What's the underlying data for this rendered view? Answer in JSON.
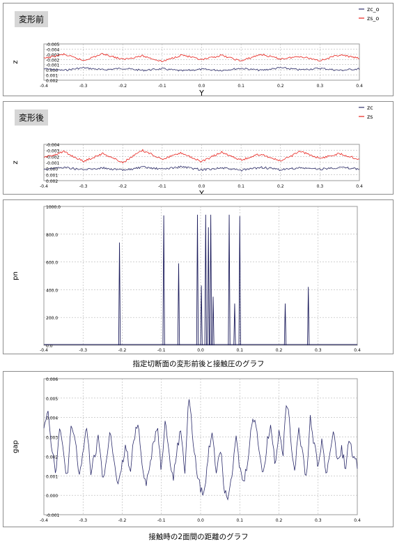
{
  "panels": {
    "before": {
      "label": "変形前"
    },
    "after": {
      "label": "変形後"
    }
  },
  "captions": {
    "contact": "指定切断面の変形前後と接触圧のグラフ",
    "gap": "接触時の2面間の距離のグラフ"
  },
  "colors": {
    "zc": "#2f2f6a",
    "zs": "#e8201a",
    "pn": "#1c1c5c",
    "gap": "#2a2a6a",
    "grid": "#b4b4b4"
  },
  "chart_data": [
    {
      "type": "line",
      "title": "",
      "xlabel": "Y",
      "ylabel": "z",
      "xlim": [
        -0.4,
        0.4
      ],
      "x_ticks": [
        "-0.4",
        "-0.3",
        "-0.2",
        "-0.1",
        "0.0",
        "0.1",
        "0.2",
        "0.3",
        "0.4"
      ],
      "y_ticks": [
        "-0.005",
        "-0.004",
        "-0.003",
        "-0.002",
        "-0.001",
        "0.000",
        "0.001",
        "0.002"
      ],
      "legend_position": "top-right",
      "grid": true,
      "series": [
        {
          "name": "zc_o",
          "color": "#2f2f6a",
          "x": [
            -0.4,
            -0.35,
            -0.3,
            -0.25,
            -0.2,
            -0.15,
            -0.1,
            -0.05,
            0.0,
            0.05,
            0.1,
            0.15,
            0.2,
            0.25,
            0.3,
            0.35,
            0.4
          ],
          "values": [
            -0.0002,
            0.0001,
            -0.0004,
            0.0,
            -0.0003,
            0.0001,
            -0.0002,
            0.0002,
            -0.0001,
            0.0001,
            -0.0003,
            0.0001,
            -0.0004,
            0.0,
            -0.0003,
            0.0001,
            -0.0002
          ]
        },
        {
          "name": "zs_o",
          "color": "#e8201a",
          "x": [
            -0.4,
            -0.35,
            -0.3,
            -0.25,
            -0.2,
            -0.15,
            -0.1,
            -0.05,
            0.0,
            0.05,
            0.1,
            0.15,
            0.2,
            0.25,
            0.3,
            0.35,
            0.4
          ],
          "values": [
            -0.0022,
            -0.003,
            -0.0018,
            -0.0031,
            -0.002,
            -0.0027,
            -0.0016,
            -0.0029,
            -0.0019,
            -0.0028,
            -0.0017,
            -0.003,
            -0.0021,
            -0.0026,
            -0.0018,
            -0.0029,
            -0.0022
          ]
        }
      ]
    },
    {
      "type": "line",
      "title": "",
      "xlabel": "Y",
      "ylabel": "z",
      "xlim": [
        -0.4,
        0.4
      ],
      "x_ticks": [
        "-0.4",
        "-0.3",
        "-0.2",
        "-0.1",
        "0.0",
        "0.1",
        "0.2",
        "0.3",
        "0.4"
      ],
      "y_ticks": [
        "-0.004",
        "-0.003",
        "-0.002",
        "-0.001",
        "0.000",
        "0.001",
        "0.002"
      ],
      "legend_position": "top-right",
      "grid": true,
      "series": [
        {
          "name": "zc",
          "color": "#2f2f6a",
          "x": [
            -0.4,
            -0.35,
            -0.3,
            -0.25,
            -0.2,
            -0.15,
            -0.1,
            -0.05,
            0.0,
            0.05,
            0.1,
            0.15,
            0.2,
            0.25,
            0.3,
            0.35,
            0.4
          ],
          "values": [
            0.0001,
            -0.0002,
            0.0002,
            -0.0001,
            0.0003,
            -0.0002,
            0.0001,
            -0.0003,
            0.0002,
            -0.0001,
            0.0003,
            -0.0002,
            0.0002,
            -0.0001,
            0.0001,
            -0.0002,
            0.0001
          ]
        },
        {
          "name": "zs",
          "color": "#e8201a",
          "x": [
            -0.4,
            -0.35,
            -0.3,
            -0.25,
            -0.2,
            -0.15,
            -0.1,
            -0.05,
            0.0,
            0.05,
            0.1,
            0.15,
            0.2,
            0.25,
            0.3,
            0.35,
            0.4
          ],
          "values": [
            -0.0018,
            -0.0028,
            -0.0012,
            -0.0025,
            -0.001,
            -0.003,
            -0.0016,
            -0.0026,
            -0.0011,
            -0.0027,
            -0.0014,
            -0.0024,
            -0.0012,
            -0.0028,
            -0.0017,
            -0.0025,
            -0.0015
          ]
        }
      ]
    },
    {
      "type": "line",
      "title": "",
      "xlabel": "",
      "ylabel": "pn",
      "xlim": [
        -0.4,
        0.4
      ],
      "ylim": [
        0,
        1000
      ],
      "x_ticks": [
        "-0.4",
        "-0.3",
        "-0.2",
        "-0.1",
        "0.0",
        "0.1",
        "0.2",
        "0.3",
        "0.4"
      ],
      "y_ticks": [
        "0.0",
        "200.0",
        "400.0",
        "600.0",
        "800.0",
        "1000.0"
      ],
      "grid": true,
      "spikes": [
        {
          "x": -0.207,
          "value": 740
        },
        {
          "x": -0.094,
          "value": 935
        },
        {
          "x": -0.056,
          "value": 590
        },
        {
          "x": -0.008,
          "value": 940
        },
        {
          "x": 0.002,
          "value": 430
        },
        {
          "x": 0.013,
          "value": 940
        },
        {
          "x": 0.02,
          "value": 850
        },
        {
          "x": 0.026,
          "value": 940
        },
        {
          "x": 0.032,
          "value": 350
        },
        {
          "x": 0.073,
          "value": 940
        },
        {
          "x": 0.087,
          "value": 300
        },
        {
          "x": 0.1,
          "value": 930
        },
        {
          "x": 0.216,
          "value": 300
        },
        {
          "x": 0.275,
          "value": 420
        }
      ]
    },
    {
      "type": "line",
      "title": "",
      "xlabel": "",
      "ylabel": "gap",
      "xlim": [
        -0.4,
        0.4
      ],
      "ylim": [
        -0.001,
        0.006
      ],
      "x_ticks": [
        "-0.4",
        "-0.3",
        "-0.2",
        "-0.1",
        "0.0",
        "0.1",
        "0.2",
        "0.3",
        "0.4"
      ],
      "y_ticks": [
        "-0.001",
        "0.000",
        "0.001",
        "0.002",
        "0.003",
        "0.004",
        "0.005",
        "0.006"
      ],
      "grid": true,
      "series": [
        {
          "name": "",
          "color": "#2a2a6a",
          "x": [
            -0.4,
            -0.39,
            -0.38,
            -0.37,
            -0.36,
            -0.35,
            -0.34,
            -0.33,
            -0.32,
            -0.31,
            -0.3,
            -0.29,
            -0.28,
            -0.27,
            -0.26,
            -0.25,
            -0.24,
            -0.23,
            -0.22,
            -0.21,
            -0.2,
            -0.19,
            -0.18,
            -0.17,
            -0.16,
            -0.15,
            -0.14,
            -0.13,
            -0.12,
            -0.11,
            -0.1,
            -0.09,
            -0.08,
            -0.07,
            -0.06,
            -0.05,
            -0.04,
            -0.03,
            -0.02,
            -0.01,
            0.0,
            0.01,
            0.02,
            0.03,
            0.04,
            0.05,
            0.06,
            0.07,
            0.08,
            0.09,
            0.1,
            0.11,
            0.12,
            0.13,
            0.14,
            0.15,
            0.16,
            0.17,
            0.18,
            0.19,
            0.2,
            0.21,
            0.22,
            0.23,
            0.24,
            0.25,
            0.26,
            0.27,
            0.28,
            0.29,
            0.3,
            0.31,
            0.32,
            0.33,
            0.34,
            0.35,
            0.36,
            0.37,
            0.38,
            0.39,
            0.4
          ],
          "values": [
            0.0036,
            0.0045,
            0.0025,
            0.0012,
            0.0034,
            0.0022,
            0.0008,
            0.0036,
            0.0028,
            0.001,
            0.0022,
            0.0035,
            0.0012,
            0.002,
            0.003,
            0.0008,
            0.0018,
            0.0034,
            0.0015,
            0.0004,
            0.0016,
            0.0026,
            0.001,
            0.003,
            0.0038,
            0.0018,
            0.0006,
            0.0014,
            0.0028,
            0.0036,
            0.0012,
            0.0042,
            0.002,
            0.0008,
            0.0024,
            0.0034,
            0.0012,
            0.0052,
            0.003,
            0.0012,
            0.0003,
            0.0001,
            0.0022,
            0.0034,
            0.0012,
            0.0026,
            0.0004,
            0.0,
            0.0012,
            0.003,
            0.0014,
            0.0006,
            0.0018,
            0.0036,
            0.004,
            0.0022,
            0.001,
            0.0028,
            0.0036,
            0.0016,
            0.0034,
            0.002,
            0.005,
            0.003,
            0.0012,
            0.0036,
            0.0022,
            0.0008,
            0.004,
            0.0026,
            0.0014,
            0.003,
            0.001,
            0.0022,
            0.0034,
            0.0016,
            0.0024,
            0.0014,
            0.003,
            0.0018,
            0.0016
          ]
        }
      ]
    }
  ]
}
